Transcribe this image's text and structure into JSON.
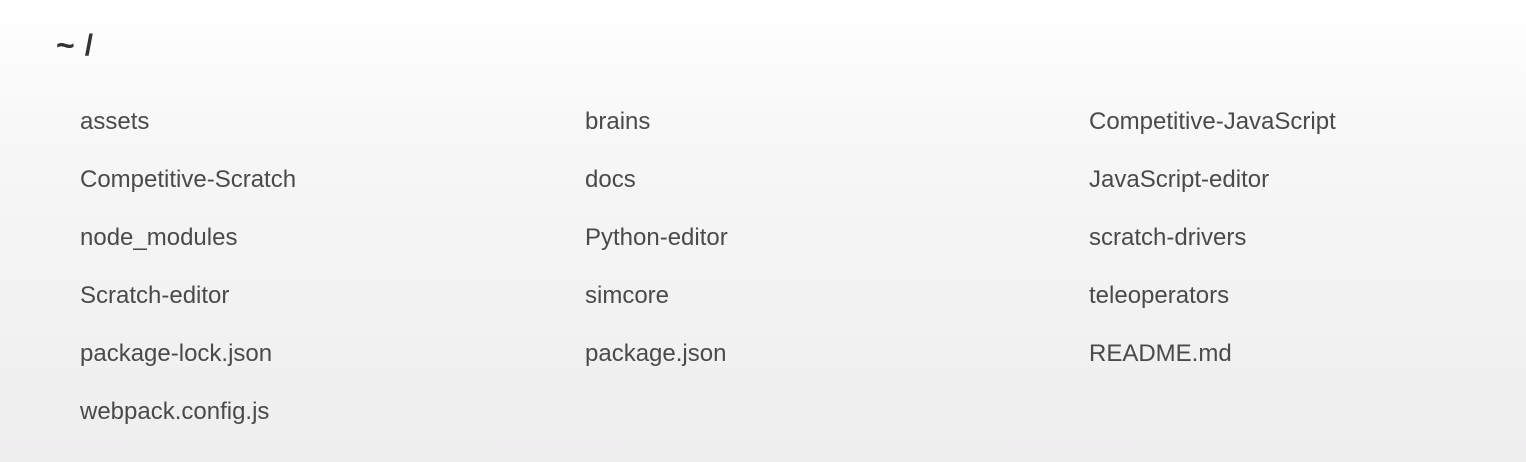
{
  "breadcrumb": {
    "home": "~",
    "separator": "/"
  },
  "entries": [
    {
      "name": "assets"
    },
    {
      "name": "brains"
    },
    {
      "name": "Competitive-JavaScript"
    },
    {
      "name": "Competitive-Scratch"
    },
    {
      "name": "docs"
    },
    {
      "name": "JavaScript-editor"
    },
    {
      "name": "node_modules"
    },
    {
      "name": "Python-editor"
    },
    {
      "name": "scratch-drivers"
    },
    {
      "name": "Scratch-editor"
    },
    {
      "name": "simcore"
    },
    {
      "name": "teleoperators"
    },
    {
      "name": "package-lock.json"
    },
    {
      "name": "package.json"
    },
    {
      "name": "README.md"
    },
    {
      "name": "webpack.config.js"
    }
  ],
  "colors": {
    "text": "#4a4a4a",
    "heading": "#333333",
    "background_top": "#ffffff",
    "background_bottom": "#efeeef"
  }
}
